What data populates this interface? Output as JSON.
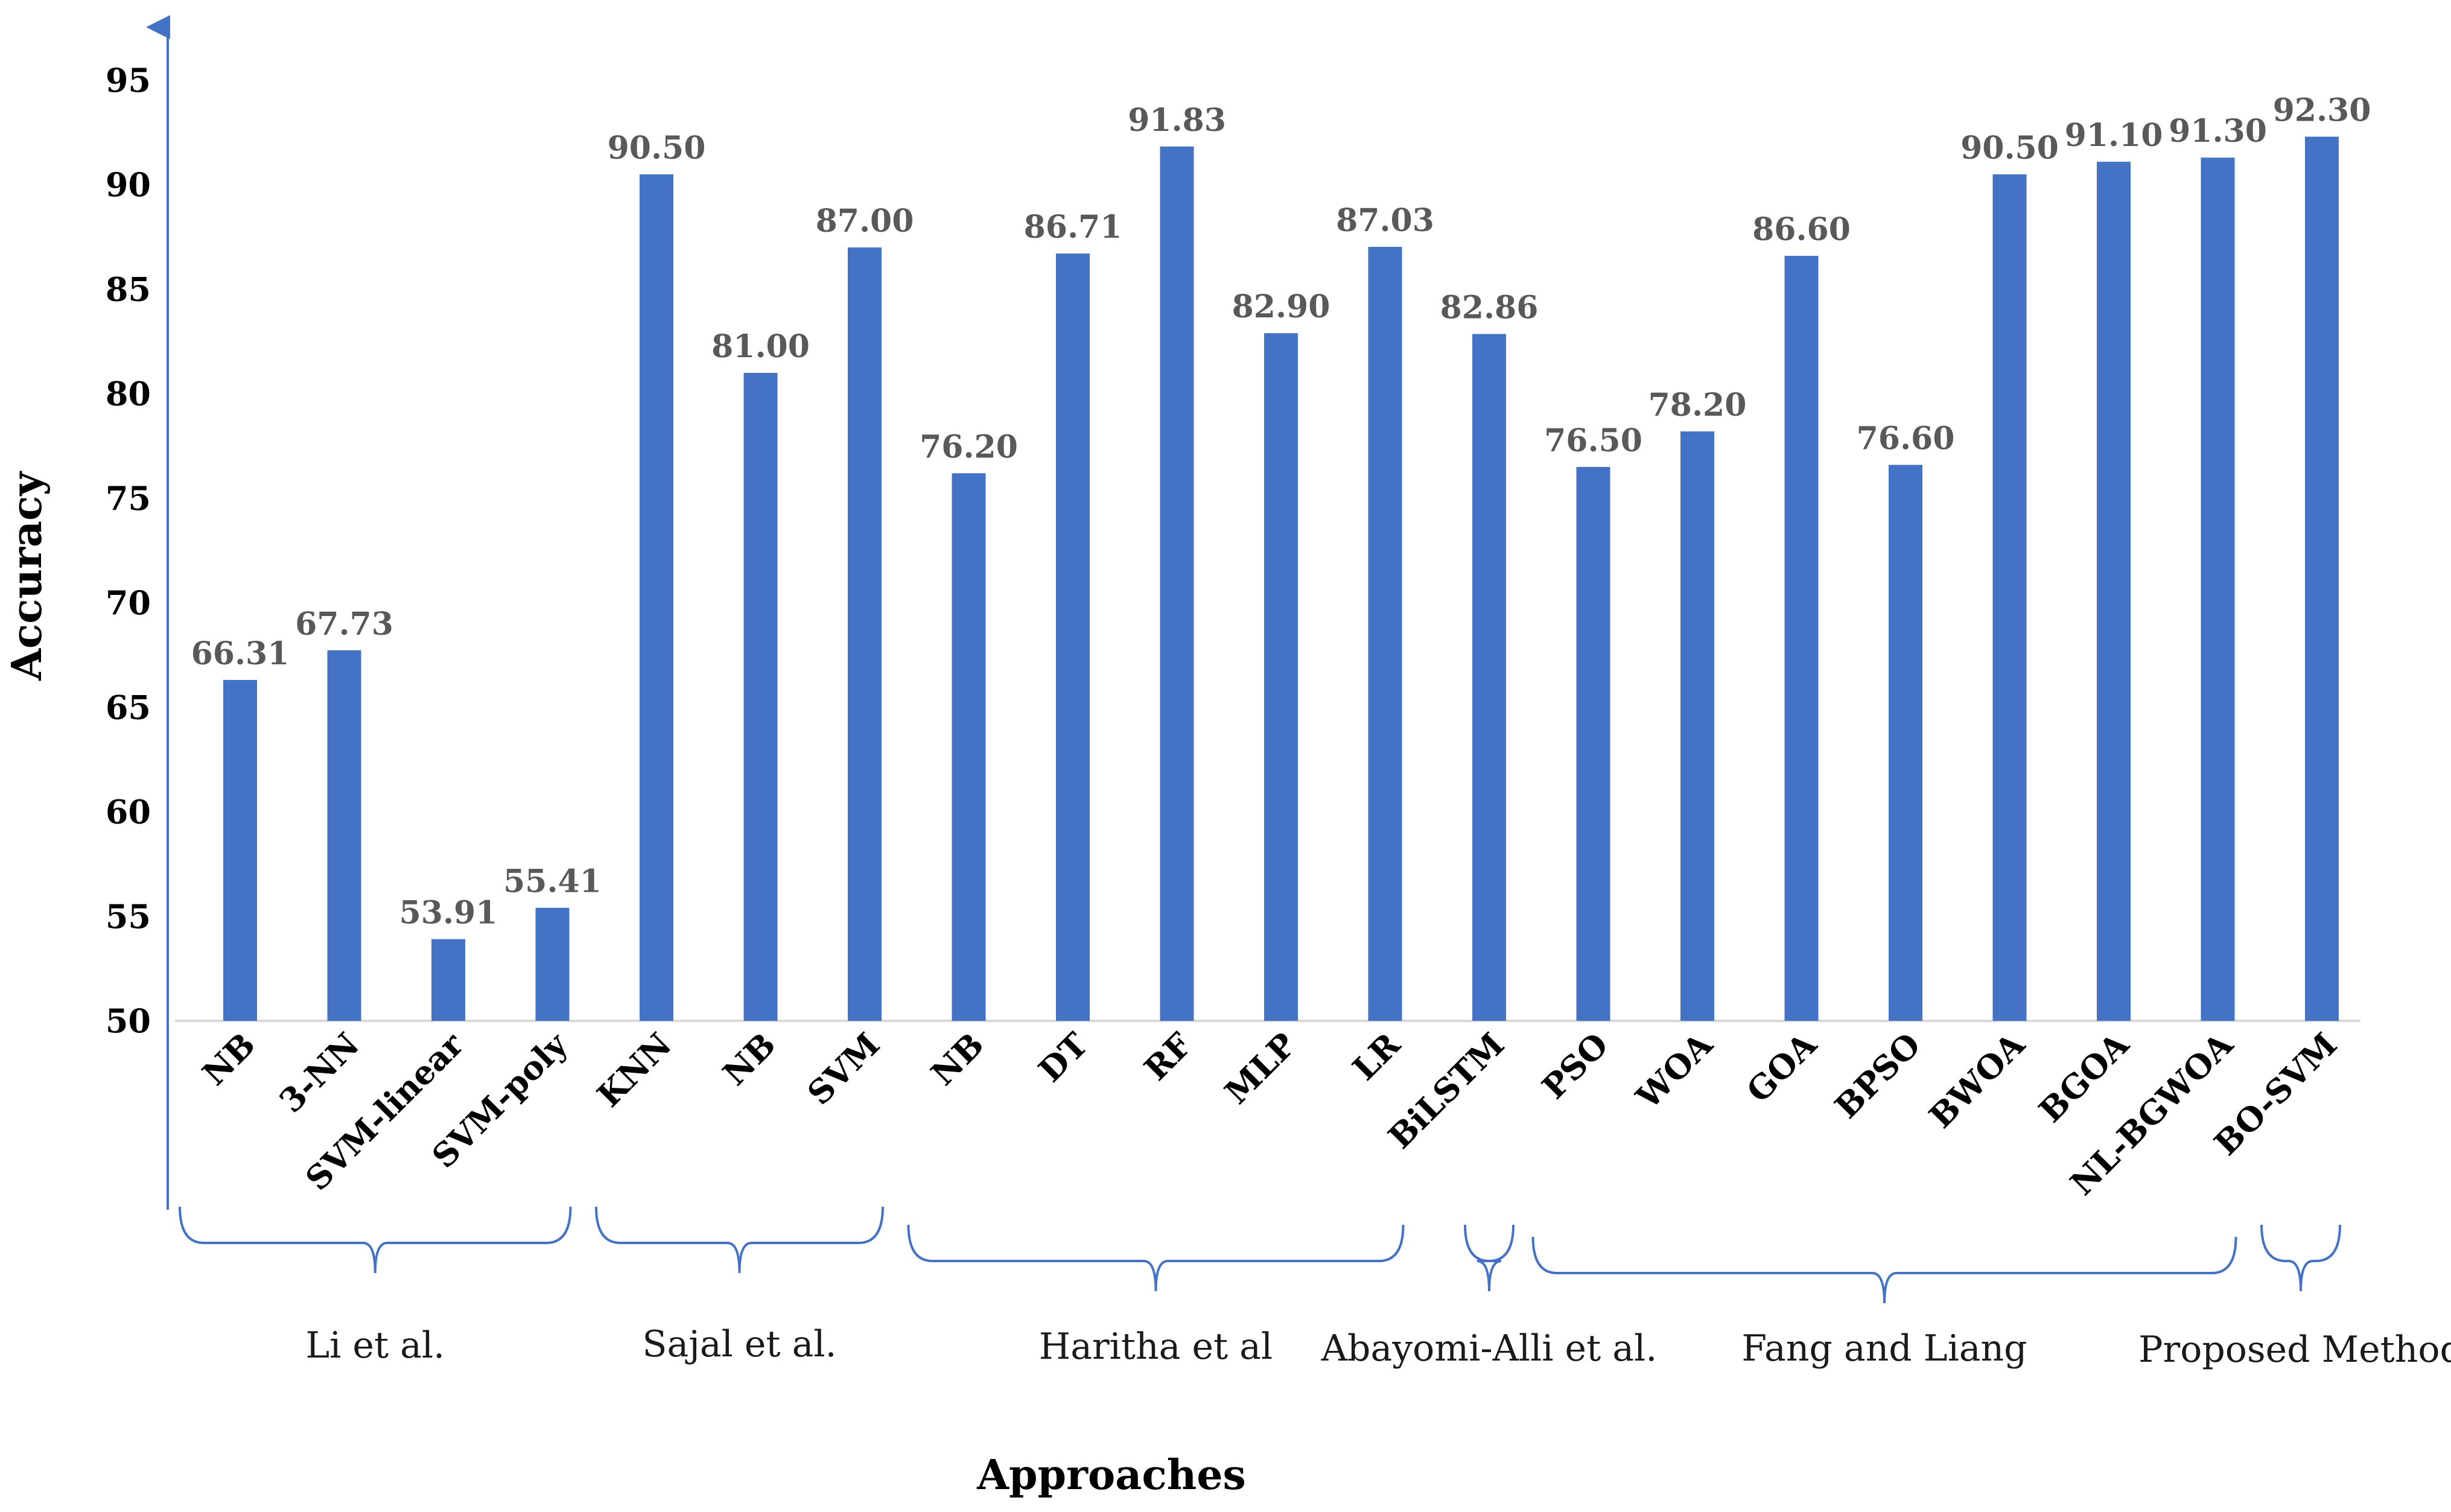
{
  "chart_data": {
    "type": "bar",
    "title": "",
    "xlabel": "Approaches",
    "ylabel": "Accuracy",
    "ylim": [
      50,
      96
    ],
    "yticks": [
      "50",
      "55",
      "60",
      "65",
      "70",
      "75",
      "80",
      "85",
      "90",
      "95"
    ],
    "grid": false,
    "bar_color": "#4472C4",
    "categories": [
      "NB",
      "3-NN",
      "SVM-linear",
      "SVM-poly",
      "KNN",
      "NB",
      "SVM",
      "NB",
      "DT",
      "RF",
      "MLP",
      "LR",
      "BiLSTM",
      "PSO",
      "WOA",
      "GOA",
      "BPSO",
      "BWOA",
      "BGOA",
      "NL-BGWOA",
      "BO-SVM"
    ],
    "values": [
      66.31,
      67.73,
      53.91,
      55.41,
      90.5,
      81.0,
      87.0,
      76.2,
      86.71,
      91.83,
      82.9,
      87.03,
      82.86,
      76.5,
      78.2,
      86.6,
      76.6,
      90.5,
      91.1,
      91.3,
      92.3
    ],
    "value_labels": [
      "66.31",
      "67.73",
      "53.91",
      "55.41",
      "90.50",
      "81.00",
      "87.00",
      "76.20",
      "86.71",
      "91.83",
      "82.90",
      "87.03",
      "82.86",
      "76.50",
      "78.20",
      "86.60",
      "76.60",
      "90.50",
      "91.10",
      "91.30",
      "92.30"
    ],
    "groups": [
      {
        "name": "Li et al.",
        "start": 0,
        "end": 3
      },
      {
        "name": "Sajal et al.",
        "start": 4,
        "end": 6
      },
      {
        "name": "Haritha et al",
        "start": 7,
        "end": 11
      },
      {
        "name": "Abayomi-Alli et al.",
        "start": 12,
        "end": 12
      },
      {
        "name": "Fang and Liang",
        "start": 13,
        "end": 19
      },
      {
        "name": "Proposed Method",
        "start": 20,
        "end": 20
      }
    ]
  }
}
